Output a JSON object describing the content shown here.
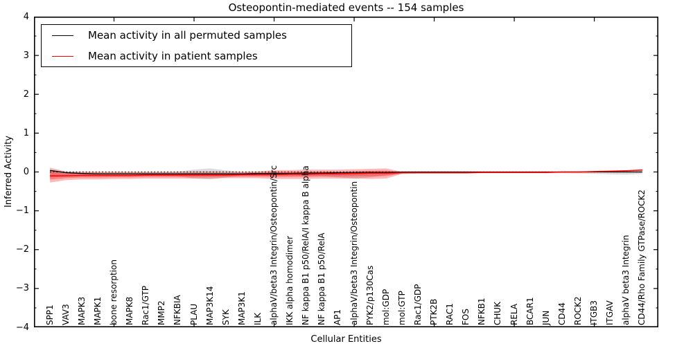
{
  "title": "Osteopontin-mediated events -- 154 samples",
  "xlabel": "Cellular Entities",
  "ylabel": "Inferred Activity",
  "legend": [
    {
      "label": "Mean activity in all permuted samples",
      "color": "#000000"
    },
    {
      "label": "Mean activity in patient samples",
      "color": "#ff0000"
    }
  ],
  "colors": {
    "permuted_line": "#000000",
    "patient_line": "#ff0000",
    "permuted_band": "#999999",
    "patient_band": "#ff0000",
    "axis": "#000000"
  },
  "chart_data": {
    "type": "line",
    "title": "Osteopontin-mediated events -- 154 samples",
    "xlabel": "Cellular Entities",
    "ylabel": "Inferred Activity",
    "ylim": [
      -4,
      4
    ],
    "yticks": [
      4,
      3,
      2,
      1,
      0,
      -1,
      -2,
      -3,
      -4
    ],
    "yminor_step": 0.5,
    "xticks_major": [
      5,
      10,
      15,
      20,
      25,
      30,
      35
    ],
    "grid": false,
    "legend_position": "upper left",
    "zero_line": {
      "y": 0,
      "style": "dotted"
    },
    "categories": [
      "SPP1",
      "VAV3",
      "MAPK3",
      "MAPK1",
      "bone resorption",
      "MAPK8",
      "Rac1/GTP",
      "MMP2",
      "NFKBIA",
      "PLAU",
      "MAP3K14",
      "SYK",
      "MAP3K1",
      "ILK",
      "alphaV/beta3 Integrin/Osteopontin/Src",
      "IKK alpha homodimer",
      "NF kappa B1 p50/RelA/I kappa B alpha",
      "NF kappa B1 p50/RelA",
      "AP1",
      "alphaV/beta3 Integrin/Osteopontin",
      "PYK2/p130Cas",
      "mol:GDP",
      "mol:GTP",
      "Rac1/GDP",
      "PTK2B",
      "RAC1",
      "FOS",
      "NFKB1",
      "CHUK",
      "RELA",
      "BCAR1",
      "JUN",
      "CD44",
      "ROCK2",
      "ITGB3",
      "ITGAV",
      "alphaV beta3 Integrin",
      "CD44/Rho Family GTPase/ROCK2"
    ],
    "series": [
      {
        "name": "Mean activity in all permuted samples",
        "color": "#000000",
        "values": [
          0.04,
          -0.02,
          -0.04,
          -0.05,
          -0.05,
          -0.05,
          -0.05,
          -0.05,
          -0.05,
          -0.05,
          -0.05,
          -0.05,
          -0.05,
          -0.04,
          -0.04,
          -0.04,
          -0.03,
          -0.03,
          -0.02,
          -0.02,
          -0.01,
          -0.01,
          0,
          0,
          0,
          0,
          0,
          0,
          0,
          0,
          0,
          0,
          0,
          0,
          0,
          0,
          0,
          0
        ]
      },
      {
        "name": "Mean activity in patient samples",
        "color": "#ff0000",
        "values": [
          -0.1,
          -0.1,
          -0.09,
          -0.09,
          -0.09,
          -0.09,
          -0.08,
          -0.08,
          -0.08,
          -0.08,
          -0.08,
          -0.08,
          -0.07,
          -0.07,
          -0.07,
          -0.06,
          -0.06,
          -0.05,
          -0.05,
          -0.04,
          -0.03,
          -0.03,
          -0.02,
          -0.02,
          -0.02,
          -0.02,
          -0.02,
          -0.01,
          -0.01,
          -0.01,
          -0.01,
          -0.01,
          0,
          0,
          0.01,
          0.02,
          0.03,
          0.05
        ]
      }
    ],
    "bands": [
      {
        "name": "permuted-range",
        "color": "#999999",
        "opacity": 0.35,
        "upper": [
          0.06,
          0.01,
          0,
          0,
          0,
          0,
          0,
          0,
          0.01,
          0.06,
          0.09,
          0.04,
          0,
          0,
          0.01,
          0.01,
          0.01,
          0.01,
          0.01,
          0.02,
          0.01,
          0.01,
          0.01,
          0.01,
          0.01,
          0.01,
          0.01,
          0.01,
          0.01,
          0.01,
          0.01,
          0.01,
          0.01,
          0.01,
          0.02,
          0.02,
          0.03,
          0.03
        ],
        "lower": [
          -0.15,
          -0.11,
          -0.1,
          -0.1,
          -0.1,
          -0.1,
          -0.1,
          -0.1,
          -0.11,
          -0.17,
          -0.19,
          -0.14,
          -0.1,
          -0.1,
          -0.1,
          -0.1,
          -0.1,
          -0.11,
          -0.14,
          -0.17,
          -0.14,
          -0.08,
          -0.04,
          -0.03,
          -0.03,
          -0.03,
          -0.03,
          -0.03,
          -0.03,
          -0.03,
          -0.03,
          -0.03,
          -0.03,
          -0.04,
          -0.05,
          -0.06,
          -0.07,
          -0.05
        ]
      },
      {
        "name": "patient-range",
        "color": "#ff0000",
        "opacity": 0.28,
        "upper": [
          0.11,
          0.01,
          0,
          0,
          0,
          0,
          0,
          0,
          0,
          0.01,
          0.01,
          0,
          0,
          0.01,
          0.05,
          0.05,
          0.06,
          0.06,
          0.06,
          0.07,
          0.08,
          0.09,
          0,
          -0.01,
          -0.01,
          -0.01,
          -0.01,
          0,
          0,
          0,
          0,
          0,
          0.01,
          0.01,
          0.02,
          0.03,
          0.04,
          0.07
        ],
        "lower": [
          -0.27,
          -0.21,
          -0.19,
          -0.19,
          -0.18,
          -0.18,
          -0.17,
          -0.17,
          -0.17,
          -0.17,
          -0.17,
          -0.16,
          -0.16,
          -0.16,
          -0.18,
          -0.18,
          -0.18,
          -0.17,
          -0.17,
          -0.17,
          -0.18,
          -0.17,
          -0.05,
          -0.04,
          -0.04,
          -0.04,
          -0.04,
          -0.03,
          -0.03,
          -0.03,
          -0.03,
          -0.03,
          -0.02,
          -0.02,
          -0.01,
          0,
          0.01,
          0.03
        ]
      }
    ]
  }
}
